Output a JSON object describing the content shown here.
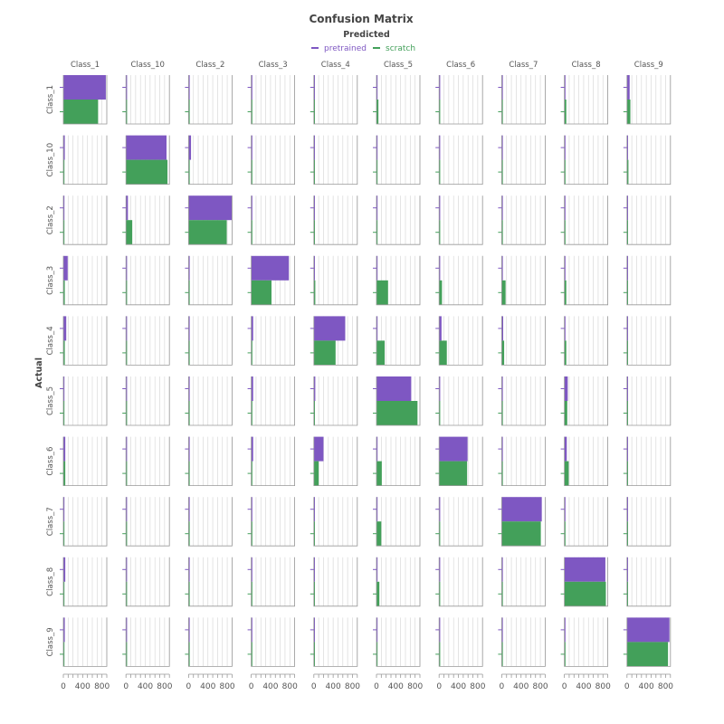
{
  "chart_data": {
    "type": "bar",
    "title": "Confusion Matrix",
    "subtitle": "Predicted",
    "ylabel": "Actual",
    "xlim": [
      0,
      900
    ],
    "x_ticks": [
      "0",
      "400",
      "800"
    ],
    "legend_position": "top-center",
    "grid": true,
    "series": [
      {
        "name": "pretrained",
        "color": "#7e57c2"
      },
      {
        "name": "scratch",
        "color": "#43a05a"
      }
    ],
    "actual_classes": [
      "Class_1",
      "Class_10",
      "Class_2",
      "Class_3",
      "Class_4",
      "Class_5",
      "Class_6",
      "Class_7",
      "Class_8",
      "Class_9"
    ],
    "predicted_classes": [
      "Class_1",
      "Class_10",
      "Class_2",
      "Class_3",
      "Class_4",
      "Class_5",
      "Class_6",
      "Class_7",
      "Class_8",
      "Class_9"
    ],
    "pretrained": [
      [
        880,
        10,
        10,
        10,
        10,
        10,
        10,
        10,
        10,
        55
      ],
      [
        30,
        840,
        50,
        5,
        5,
        5,
        5,
        5,
        5,
        5
      ],
      [
        10,
        40,
        900,
        5,
        5,
        5,
        5,
        5,
        5,
        5
      ],
      [
        90,
        5,
        5,
        780,
        20,
        10,
        15,
        20,
        20,
        5
      ],
      [
        60,
        5,
        5,
        40,
        650,
        5,
        50,
        30,
        10,
        5
      ],
      [
        10,
        5,
        5,
        40,
        30,
        720,
        20,
        5,
        70,
        5
      ],
      [
        40,
        5,
        5,
        40,
        200,
        10,
        590,
        5,
        50,
        5
      ],
      [
        5,
        5,
        5,
        5,
        20,
        5,
        5,
        830,
        5,
        5
      ],
      [
        40,
        5,
        5,
        5,
        20,
        10,
        5,
        5,
        850,
        5
      ],
      [
        30,
        10,
        20,
        5,
        5,
        5,
        5,
        5,
        5,
        880
      ]
    ],
    "scratch": [
      [
        720,
        20,
        10,
        20,
        10,
        40,
        10,
        10,
        40,
        70
      ],
      [
        10,
        860,
        10,
        5,
        5,
        10,
        5,
        5,
        5,
        30
      ],
      [
        10,
        130,
        790,
        5,
        5,
        5,
        5,
        20,
        10,
        5
      ],
      [
        30,
        10,
        5,
        420,
        30,
        240,
        60,
        80,
        40,
        5
      ],
      [
        30,
        20,
        5,
        20,
        450,
        170,
        160,
        50,
        40,
        5
      ],
      [
        10,
        5,
        5,
        10,
        10,
        850,
        10,
        5,
        60,
        5
      ],
      [
        40,
        5,
        5,
        10,
        100,
        110,
        580,
        5,
        90,
        10
      ],
      [
        5,
        5,
        5,
        5,
        5,
        100,
        5,
        810,
        10,
        5
      ],
      [
        10,
        5,
        5,
        5,
        5,
        60,
        10,
        5,
        860,
        5
      ],
      [
        10,
        10,
        5,
        5,
        5,
        5,
        5,
        5,
        5,
        850
      ]
    ]
  }
}
